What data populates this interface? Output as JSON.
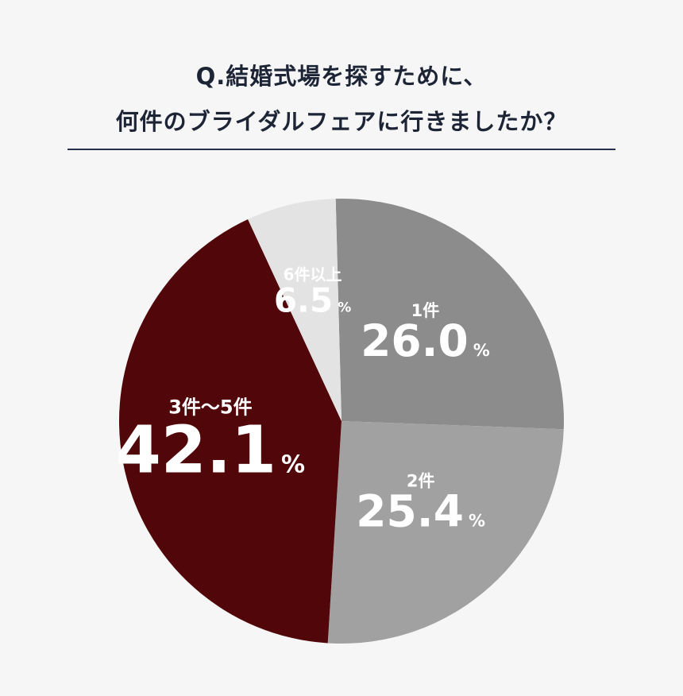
{
  "chart_data": {
    "type": "pie",
    "title_lines": [
      "Q.結婚式場を探すために、",
      "何件のブライダルフェアに行きましたか？"
    ],
    "percent_sign": "%",
    "slices": [
      {
        "category": "1件",
        "value": 26.0,
        "display": "26.0",
        "color": "#8c8c8c"
      },
      {
        "category": "2件",
        "value": 25.4,
        "display": "25.4",
        "color": "#a1a1a1"
      },
      {
        "category": "3件～5件",
        "value": 42.1,
        "display": "42.1",
        "color": "#51070a"
      },
      {
        "category": "6件以上",
        "value": 6.5,
        "display": "6.5",
        "color": "#e3e3e3"
      }
    ]
  }
}
